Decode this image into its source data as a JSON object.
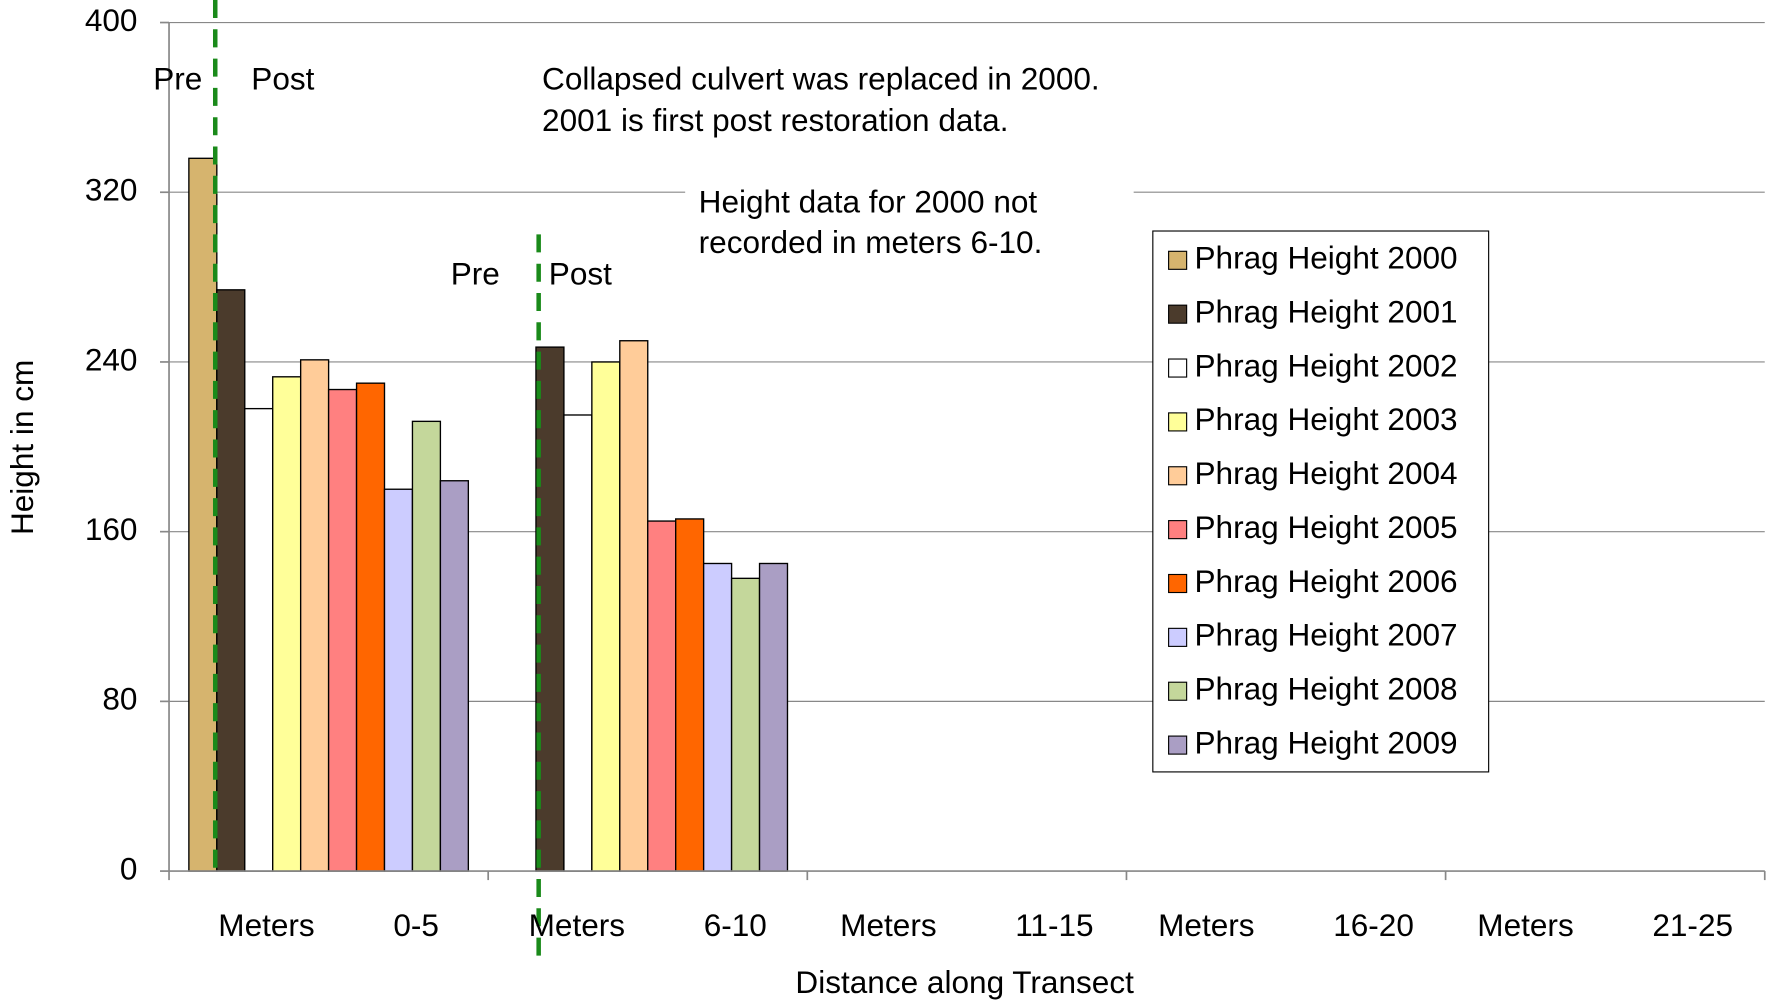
{
  "chart_data": {
    "type": "bar",
    "y_label": "Height in cm",
    "x_label": "Distance along Transect",
    "categories": [
      "Meters 0-5",
      "Meters 6-10",
      "Meters 11-15",
      "Meters 16-20",
      "Meters 21-25"
    ],
    "series": [
      {
        "name": "Phrag Height 2000",
        "color": "#d6b46e",
        "values": [
          336,
          null,
          null,
          null,
          null
        ]
      },
      {
        "name": "Phrag Height 2001",
        "color": "#4b3b2c",
        "values": [
          274,
          247,
          null,
          null,
          null
        ]
      },
      {
        "name": "Phrag Height 2002",
        "color": "#ffffff",
        "values": [
          218,
          215,
          null,
          null,
          null
        ]
      },
      {
        "name": "Phrag Height 2003",
        "color": "#ffff99",
        "values": [
          233,
          240,
          null,
          null,
          null
        ]
      },
      {
        "name": "Phrag Height 2004",
        "color": "#ffcc99",
        "values": [
          241,
          250,
          null,
          null,
          null
        ]
      },
      {
        "name": "Phrag Height 2005",
        "color": "#ff8080",
        "values": [
          227,
          165,
          null,
          null,
          null
        ]
      },
      {
        "name": "Phrag Height 2006",
        "color": "#ff6600",
        "values": [
          230,
          166,
          null,
          null,
          null
        ]
      },
      {
        "name": "Phrag Height 2007",
        "color": "#ccccff",
        "values": [
          180,
          145,
          null,
          null,
          null
        ]
      },
      {
        "name": "Phrag Height 2008",
        "color": "#c4d79b",
        "values": [
          212,
          138,
          null,
          null,
          null
        ]
      },
      {
        "name": "Phrag Height 2009",
        "color": "#aa9ec4",
        "values": [
          184,
          145,
          null,
          null,
          null
        ]
      }
    ],
    "ylim": [
      0,
      400
    ],
    "yticks": [
      0,
      80,
      160,
      240,
      320,
      400
    ],
    "grid": true,
    "legend": "right",
    "annotations": [
      "Pre",
      "Post",
      "Pre",
      "Post",
      "Collapsed culvert was replaced in 2000.",
      "2001 is first post restoration data.",
      "Height data for 2000 not",
      "recorded in meters 6-10."
    ]
  }
}
